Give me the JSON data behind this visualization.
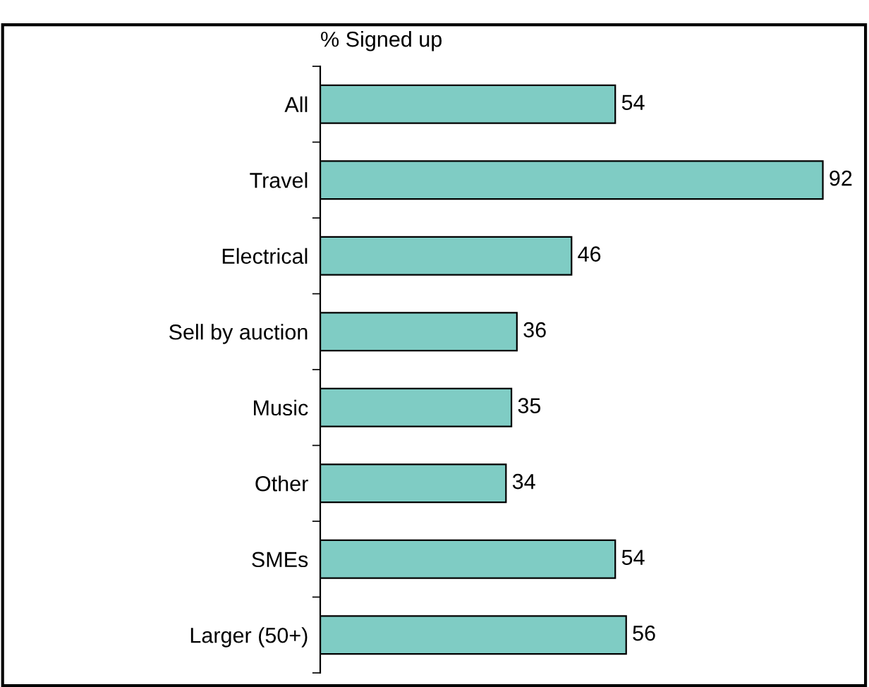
{
  "chart_data": {
    "type": "bar",
    "orientation": "horizontal",
    "ylabel": "% Signed up",
    "categories": [
      "All",
      "Travel",
      "Electrical",
      "Sell by auction",
      "Music",
      "Other",
      "SMEs",
      "Larger (50+)"
    ],
    "values": [
      54,
      92,
      46,
      36,
      35,
      34,
      54,
      56
    ],
    "color": "#7fccc4",
    "data_labels": true,
    "grid": false,
    "legend": false
  }
}
